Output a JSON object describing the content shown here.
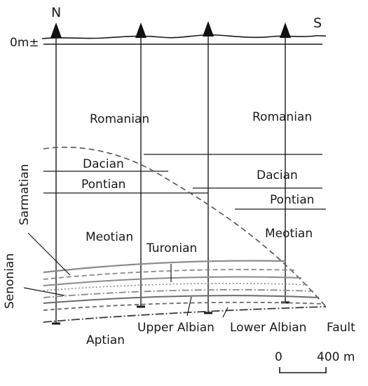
{
  "figure": {
    "north_label": "N",
    "south_label": "S",
    "datum_label": "0m±",
    "scale": {
      "start_label": "0",
      "end_label": "400 m"
    },
    "formations": {
      "romanian_left": "Romanian",
      "romanian_right": "Romanian",
      "dacian_left": "Dacian",
      "dacian_right": "Dacian",
      "pontian_left": "Pontian",
      "pontian_right": "Pontian",
      "meotian_left": "Meotian",
      "meotian_right": "Meotian",
      "sarmatian": "Sarmatian",
      "senonian": "Senonian",
      "turonian": "Turonian",
      "aptian": "Aptian",
      "upper_albian": "Upper Albian",
      "lower_albian": "Lower Albian",
      "fault": "Fault"
    },
    "colors": {
      "ink": "#1a1a1a",
      "strata": "#8a8a8a"
    }
  }
}
